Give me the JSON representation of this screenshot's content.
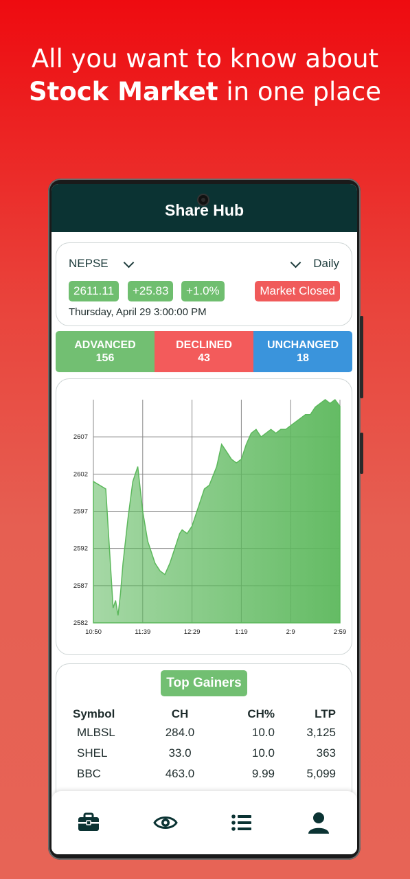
{
  "headline": {
    "line1": "All you want to know about",
    "bold": "Stock Market",
    "rest": " in one place"
  },
  "app": {
    "title": "Share Hub"
  },
  "index_card": {
    "index_name": "NEPSE",
    "period": "Daily",
    "value": "2611.11",
    "change": "+25.83",
    "change_pct": "+1.0%",
    "status": "Market Closed",
    "datetime": "Thursday, April 29 3:00:00 PM"
  },
  "breadth": {
    "advanced_label": "ADVANCED",
    "advanced": "156",
    "declined_label": "DECLINED",
    "declined": "43",
    "unchanged_label": "UNCHANGED",
    "unchanged": "18"
  },
  "chart_data": {
    "type": "area",
    "x_ticks": [
      "10:50",
      "11:39",
      "12:29",
      "1:19",
      "2:9",
      "2:59"
    ],
    "y_ticks": [
      2582,
      2587,
      2592,
      2597,
      2602,
      2607
    ],
    "ylim": [
      2582,
      2612
    ],
    "color": "#5cb85c",
    "grid": true,
    "x": [
      0,
      0.05,
      0.08,
      0.09,
      0.1,
      0.11,
      0.12,
      0.14,
      0.16,
      0.17,
      0.18,
      0.19,
      0.2,
      0.22,
      0.25,
      0.27,
      0.29,
      0.31,
      0.33,
      0.35,
      0.36,
      0.38,
      0.4,
      0.42,
      0.45,
      0.47,
      0.5,
      0.52,
      0.54,
      0.56,
      0.58,
      0.6,
      0.62,
      0.64,
      0.66,
      0.68,
      0.7,
      0.72,
      0.74,
      0.76,
      0.78,
      0.8,
      0.82,
      0.84,
      0.86,
      0.88,
      0.9,
      0.92,
      0.94,
      0.96,
      0.98,
      1.0
    ],
    "values": [
      2601,
      2600,
      2584,
      2585,
      2583,
      2586,
      2590,
      2596,
      2601,
      2602,
      2603,
      2600,
      2597,
      2593,
      2590,
      2589,
      2588.5,
      2590,
      2592,
      2594,
      2594.5,
      2594,
      2595,
      2597,
      2600,
      2600.5,
      2603,
      2606,
      2605,
      2604,
      2603.5,
      2604,
      2606,
      2607.5,
      2608,
      2607,
      2607.5,
      2608,
      2607.5,
      2608,
      2608,
      2608.5,
      2609,
      2609.5,
      2610,
      2610,
      2611,
      2611.5,
      2612,
      2611.5,
      2612,
      2611.11
    ]
  },
  "gainers": {
    "title": "Top Gainers",
    "headers": [
      "Symbol",
      "CH",
      "CH%",
      "LTP"
    ],
    "rows": [
      [
        "MLBSL",
        "284.0",
        "10.0",
        "3,125"
      ],
      [
        "SHEL",
        "33.0",
        "10.0",
        "363"
      ],
      [
        "BBC",
        "463.0",
        "9.99",
        "5,099"
      ]
    ]
  },
  "nav": {
    "items": [
      "portfolio-icon",
      "watchlist-icon",
      "list-icon",
      "profile-icon"
    ],
    "color": "#0b3333"
  }
}
